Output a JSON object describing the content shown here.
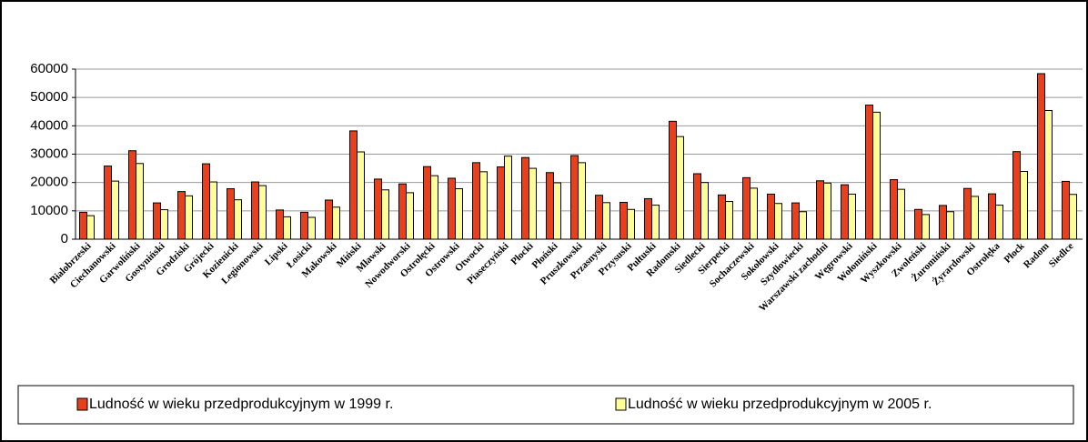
{
  "chart_data": {
    "type": "bar",
    "categories": [
      "Bialobrzeski",
      "Ciechanowski",
      "Garwoliński",
      "Gostyniński",
      "Grodziski",
      "Grójecki",
      "Kozienicki",
      "Legionowski",
      "Lipski",
      "Łosicki",
      "Makowski",
      "Miński",
      "Mławski",
      "Nowodworski",
      "Ostrołęcki",
      "Ostrowski",
      "Otwocki",
      "Piaseczyński",
      "Płocki",
      "Płoński",
      "Pruszkowski",
      "Przasnyski",
      "Przysuski",
      "Pułtuski",
      "Radomski",
      "Siedlecki",
      "Sierpecki",
      "Sochaczewski",
      "Sokołowski",
      "Szydłowiecki",
      "Warszawski zachodni",
      "Węgrowski",
      "Wołomiński",
      "Wyszkowski",
      "Zwoleński",
      "Żuromiński",
      "Żyrardowski",
      "Ostrołęka",
      "Płock",
      "Radom",
      "Siedlce"
    ],
    "series": [
      {
        "name": "Ludność w wieku przedprodukcyjnym w 1999 r.",
        "color": "#e8401c",
        "values": [
          9500,
          25800,
          31200,
          12800,
          16800,
          26600,
          17800,
          20200,
          10300,
          9500,
          13800,
          38200,
          21200,
          19500,
          25600,
          21500,
          27000,
          25500,
          28800,
          23500,
          29500,
          15500,
          13000,
          14300,
          41600,
          23100,
          15600,
          21700,
          15900,
          12800,
          20600,
          19200,
          47300,
          21000,
          10500,
          11900,
          17900,
          16000,
          30900,
          58400,
          20400
        ]
      },
      {
        "name": "Ludność w wieku przedprodukcyjnym w 2005 r.",
        "color": "#ffff99",
        "values": [
          8300,
          20500,
          26700,
          10400,
          15300,
          20200,
          13900,
          18900,
          7900,
          7700,
          11300,
          30800,
          17400,
          16400,
          22400,
          17800,
          23800,
          29300,
          25000,
          19900,
          27000,
          12900,
          10500,
          12000,
          36200,
          20000,
          13300,
          18000,
          12600,
          9700,
          19800,
          15900,
          44800,
          17600,
          8700,
          9700,
          15100,
          12000,
          23900,
          45400,
          15800
        ]
      }
    ],
    "ylim": [
      0,
      60000
    ],
    "yticks": [
      0,
      10000,
      20000,
      30000,
      40000,
      50000,
      60000
    ],
    "grid": true,
    "legend": "bottom"
  }
}
